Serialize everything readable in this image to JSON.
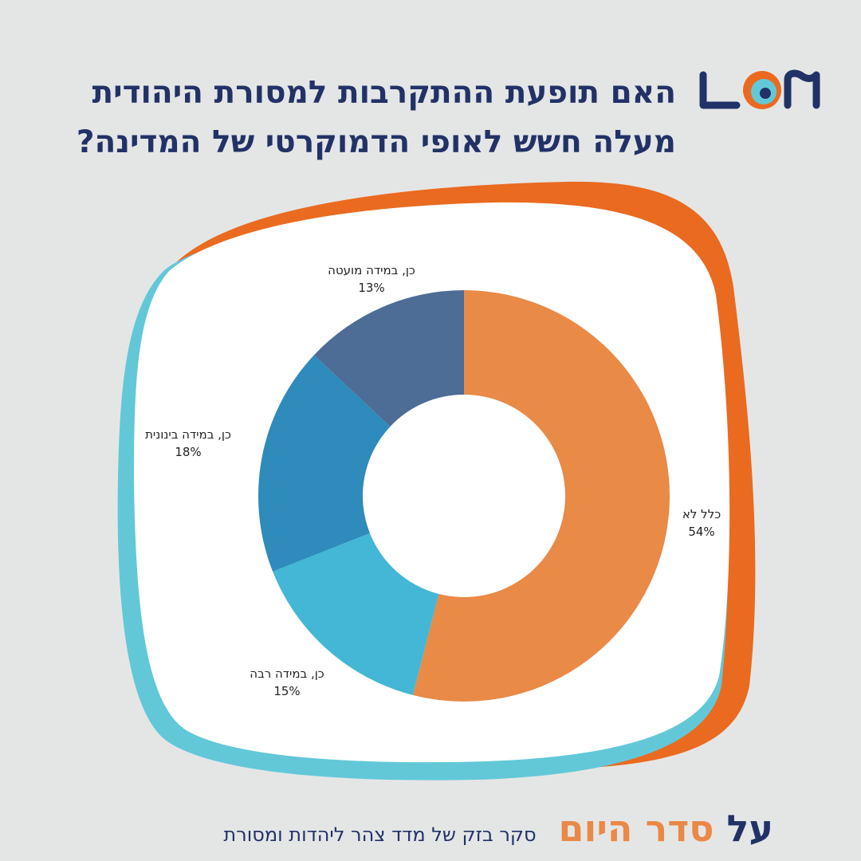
{
  "title_lines": [
    "האם תופעת ההתקרבות למסורת היהודית",
    "מעלה חשש לאופי הדמוקרטי של המדינה?"
  ],
  "logo": {
    "icon": "swirl-logo",
    "text": "משב"
  },
  "colors": {
    "background": "#e4e6e6",
    "title": "#223267",
    "frame_orange": "#ea6a20",
    "frame_cyan": "#62c8d8",
    "accent_orange": "#ea8845"
  },
  "chart_data": {
    "type": "pie",
    "donut": true,
    "title": "",
    "slices": [
      {
        "label": "כלל לא",
        "value": 54,
        "value_text": "54%",
        "color": "#e98a47"
      },
      {
        "label": "כן, במידה רבה",
        "value": 15,
        "value_text": "15%",
        "color": "#43b7d5"
      },
      {
        "label": "כן, במידה בינונית",
        "value": 18,
        "value_text": "18%",
        "color": "#2e8bbb"
      },
      {
        "label": "כן, במידה מועטה",
        "value": 13,
        "value_text": "13%",
        "color": "#4d6c96"
      }
    ]
  },
  "footer": {
    "brand_prefix": "על",
    "brand_main": "סדר היום",
    "source": "סקר בזק של מדד צהר ליהדות ומסורת"
  }
}
